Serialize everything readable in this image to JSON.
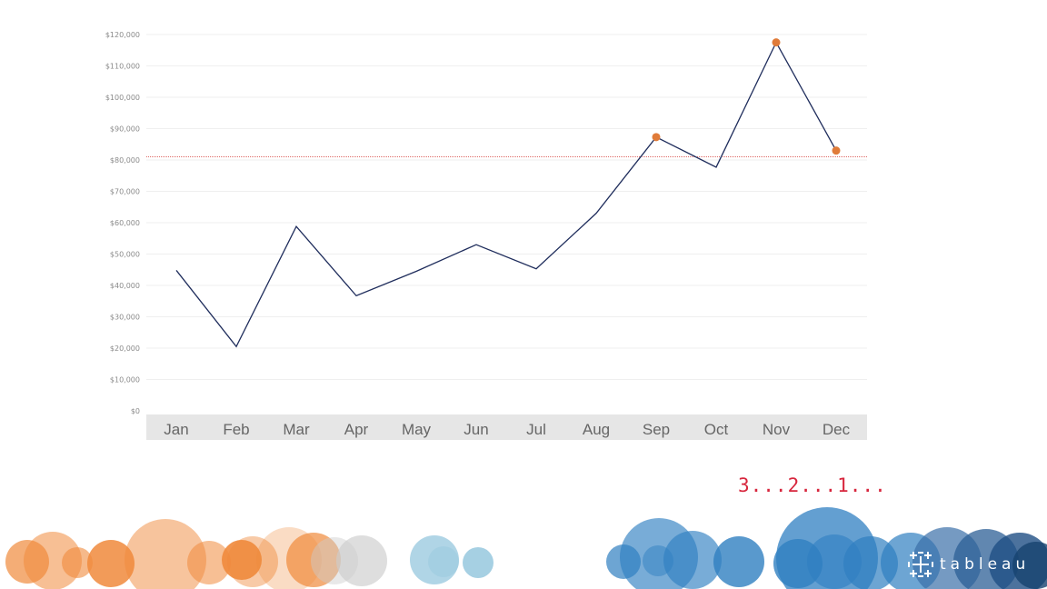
{
  "chart_data": {
    "type": "line",
    "categories": [
      "Jan",
      "Feb",
      "Mar",
      "Apr",
      "May",
      "Jun",
      "Jul",
      "Aug",
      "Sep",
      "Oct",
      "Nov",
      "Dec"
    ],
    "series": [
      {
        "values": [
          44800,
          20500,
          58800,
          36700,
          44500,
          53000,
          45300,
          63000,
          87300,
          77700,
          117500,
          83000
        ]
      }
    ],
    "highlighted_points": [
      "Sep",
      "Nov",
      "Dec"
    ],
    "reference_line": 81000,
    "yticks": [
      0,
      10000,
      20000,
      30000,
      40000,
      50000,
      60000,
      70000,
      80000,
      90000,
      100000,
      110000,
      120000
    ],
    "ytick_labels": [
      "$0",
      "$10,000",
      "$20,000",
      "$30,000",
      "$40,000",
      "$50,000",
      "$60,000",
      "$70,000",
      "$80,000",
      "$90,000",
      "$100,000",
      "$110,000",
      "$120,000"
    ],
    "ylim": [
      0,
      120000
    ],
    "title": "",
    "xlabel": "",
    "ylabel": "",
    "grid": true,
    "colors": {
      "line": "#1f2d5c",
      "highlight": "#e07b39",
      "reference": "#d9534f",
      "axis_band": "#e6e6e6"
    }
  },
  "countdown_text": "3...2...1...",
  "logo": {
    "icon": "tableau-plus-icon",
    "text": "tableau"
  },
  "bubbles_decor": {
    "orange": "#f08a3c",
    "blue": "#2f7fc1",
    "light_blue": "#9ccbe0",
    "gray": "#cccccc"
  }
}
